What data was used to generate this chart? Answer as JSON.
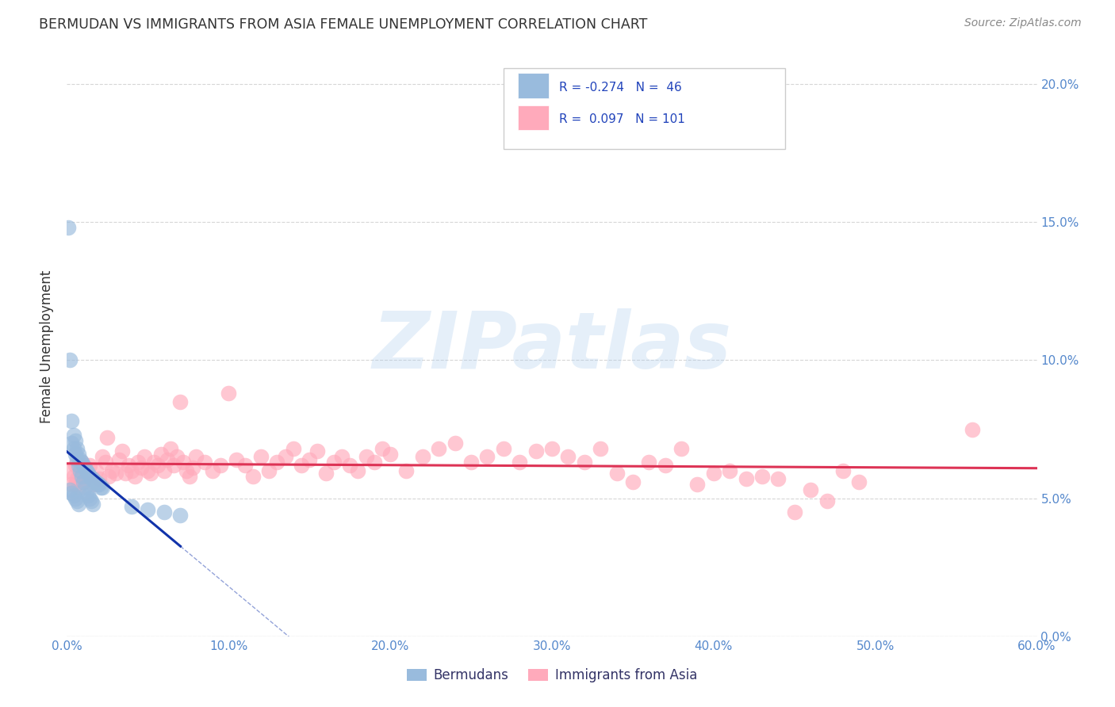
{
  "title": "BERMUDAN VS IMMIGRANTS FROM ASIA FEMALE UNEMPLOYMENT CORRELATION CHART",
  "source": "Source: ZipAtlas.com",
  "ylabel": "Female Unemployment",
  "xlim": [
    0.0,
    0.6
  ],
  "ylim": [
    0.0,
    0.21
  ],
  "xticks": [
    0.0,
    0.1,
    0.2,
    0.3,
    0.4,
    0.5,
    0.6
  ],
  "xticklabels": [
    "0.0%",
    "10.0%",
    "20.0%",
    "30.0%",
    "40.0%",
    "50.0%",
    "60.0%"
  ],
  "yticks": [
    0.0,
    0.05,
    0.1,
    0.15,
    0.2
  ],
  "yticklabels": [
    "0.0%",
    "5.0%",
    "10.0%",
    "15.0%",
    "20.0%"
  ],
  "grid_color": "#cccccc",
  "background_color": "#ffffff",
  "blue_color": "#99bbdd",
  "pink_color": "#ffaabb",
  "trend_blue": "#1133aa",
  "trend_pink": "#dd3355",
  "watermark": "ZIPatlas",
  "bermudan_x": [
    0.001,
    0.002,
    0.003,
    0.004,
    0.005,
    0.006,
    0.007,
    0.008,
    0.009,
    0.01,
    0.011,
    0.012,
    0.013,
    0.014,
    0.015,
    0.016,
    0.017,
    0.018,
    0.019,
    0.02,
    0.021,
    0.022,
    0.003,
    0.004,
    0.005,
    0.006,
    0.007,
    0.008,
    0.009,
    0.01,
    0.011,
    0.012,
    0.013,
    0.014,
    0.015,
    0.016,
    0.04,
    0.05,
    0.06,
    0.07,
    0.002,
    0.003,
    0.004,
    0.005,
    0.006,
    0.007
  ],
  "bermudan_y": [
    0.148,
    0.1,
    0.078,
    0.073,
    0.071,
    0.068,
    0.066,
    0.064,
    0.063,
    0.062,
    0.061,
    0.06,
    0.059,
    0.058,
    0.057,
    0.057,
    0.056,
    0.056,
    0.055,
    0.055,
    0.054,
    0.054,
    0.07,
    0.068,
    0.066,
    0.064,
    0.062,
    0.06,
    0.058,
    0.056,
    0.054,
    0.052,
    0.051,
    0.05,
    0.049,
    0.048,
    0.047,
    0.046,
    0.045,
    0.044,
    0.053,
    0.052,
    0.051,
    0.05,
    0.049,
    0.048
  ],
  "asia_x": [
    0.002,
    0.003,
    0.004,
    0.005,
    0.006,
    0.007,
    0.008,
    0.009,
    0.01,
    0.012,
    0.014,
    0.016,
    0.018,
    0.02,
    0.022,
    0.024,
    0.025,
    0.026,
    0.028,
    0.03,
    0.032,
    0.034,
    0.036,
    0.038,
    0.04,
    0.042,
    0.044,
    0.046,
    0.048,
    0.05,
    0.052,
    0.054,
    0.056,
    0.058,
    0.06,
    0.062,
    0.064,
    0.066,
    0.068,
    0.07,
    0.072,
    0.074,
    0.076,
    0.078,
    0.08,
    0.085,
    0.09,
    0.095,
    0.1,
    0.105,
    0.11,
    0.115,
    0.12,
    0.125,
    0.13,
    0.135,
    0.14,
    0.145,
    0.15,
    0.155,
    0.16,
    0.165,
    0.17,
    0.175,
    0.18,
    0.185,
    0.19,
    0.195,
    0.2,
    0.21,
    0.22,
    0.23,
    0.24,
    0.25,
    0.26,
    0.27,
    0.28,
    0.29,
    0.3,
    0.31,
    0.32,
    0.33,
    0.34,
    0.35,
    0.36,
    0.37,
    0.38,
    0.39,
    0.4,
    0.41,
    0.42,
    0.43,
    0.44,
    0.45,
    0.46,
    0.47,
    0.48,
    0.49,
    0.56,
    0.005,
    0.01
  ],
  "asia_y": [
    0.06,
    0.055,
    0.058,
    0.062,
    0.057,
    0.054,
    0.059,
    0.063,
    0.056,
    0.058,
    0.062,
    0.055,
    0.06,
    0.057,
    0.065,
    0.063,
    0.072,
    0.058,
    0.06,
    0.059,
    0.064,
    0.067,
    0.059,
    0.062,
    0.06,
    0.058,
    0.063,
    0.061,
    0.065,
    0.06,
    0.059,
    0.063,
    0.062,
    0.066,
    0.06,
    0.064,
    0.068,
    0.062,
    0.065,
    0.085,
    0.063,
    0.06,
    0.058,
    0.061,
    0.065,
    0.063,
    0.06,
    0.062,
    0.088,
    0.064,
    0.062,
    0.058,
    0.065,
    0.06,
    0.063,
    0.065,
    0.068,
    0.062,
    0.064,
    0.067,
    0.059,
    0.063,
    0.065,
    0.062,
    0.06,
    0.065,
    0.063,
    0.068,
    0.066,
    0.06,
    0.065,
    0.068,
    0.07,
    0.063,
    0.065,
    0.068,
    0.063,
    0.067,
    0.068,
    0.065,
    0.063,
    0.068,
    0.059,
    0.056,
    0.063,
    0.062,
    0.068,
    0.055,
    0.059,
    0.06,
    0.057,
    0.058,
    0.057,
    0.045,
    0.053,
    0.049,
    0.06,
    0.056,
    0.075,
    0.055,
    0.062
  ]
}
